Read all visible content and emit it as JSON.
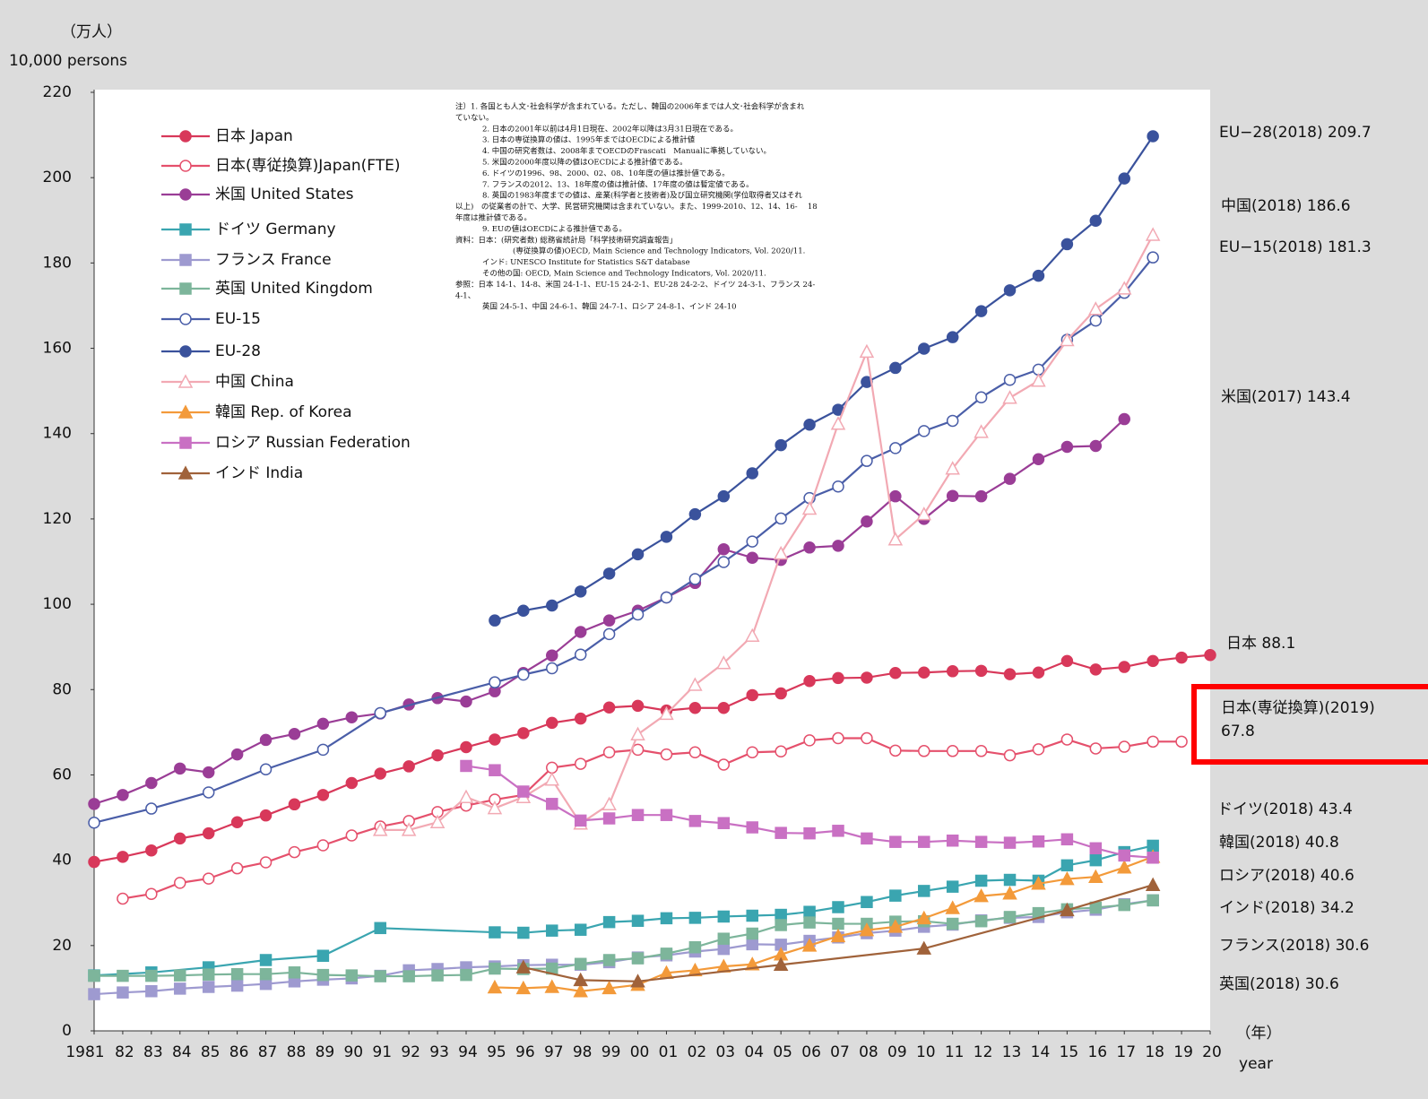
{
  "chart_data": {
    "type": "line",
    "y_unit_label": "（万人）",
    "y_unit_label_en": "10,000 persons",
    "x_unit_label": "（年）",
    "x_unit_label_en": "year",
    "xlim": [
      1981,
      2020
    ],
    "xticks": [
      1981,
      {
        "value": 1982,
        "label": "82"
      },
      {
        "value": 1983,
        "label": "83"
      },
      {
        "value": 1984,
        "label": "84"
      },
      {
        "value": 1985,
        "label": "85"
      },
      {
        "value": 1986,
        "label": "86"
      },
      {
        "value": 1987,
        "label": "87"
      },
      {
        "value": 1988,
        "label": "88"
      },
      {
        "value": 1989,
        "label": "89"
      },
      {
        "value": 1990,
        "label": "90"
      },
      {
        "value": 1991,
        "label": "91"
      },
      {
        "value": 1992,
        "label": "92"
      },
      {
        "value": 1993,
        "label": "93"
      },
      {
        "value": 1994,
        "label": "94"
      },
      {
        "value": 1995,
        "label": "95"
      },
      {
        "value": 1996,
        "label": "96"
      },
      {
        "value": 1997,
        "label": "97"
      },
      {
        "value": 1998,
        "label": "98"
      },
      {
        "value": 1999,
        "label": "99"
      },
      {
        "value": 2000,
        "label": "00"
      },
      {
        "value": 2001,
        "label": "01"
      },
      {
        "value": 2002,
        "label": "02"
      },
      {
        "value": 2003,
        "label": "03"
      },
      {
        "value": 2004,
        "label": "04"
      },
      {
        "value": 2005,
        "label": "05"
      },
      {
        "value": 2006,
        "label": "06"
      },
      {
        "value": 2007,
        "label": "07"
      },
      {
        "value": 2008,
        "label": "08"
      },
      {
        "value": 2009,
        "label": "09"
      },
      {
        "value": 2010,
        "label": "10"
      },
      {
        "value": 2011,
        "label": "11"
      },
      {
        "value": 2012,
        "label": "12"
      },
      {
        "value": 2013,
        "label": "13"
      },
      {
        "value": 2014,
        "label": "14"
      },
      {
        "value": 2015,
        "label": "15"
      },
      {
        "value": 2016,
        "label": "16"
      },
      {
        "value": 2017,
        "label": "17"
      },
      {
        "value": 2018,
        "label": "18"
      },
      {
        "value": 2019,
        "label": "19"
      },
      {
        "value": 2020,
        "label": "20"
      }
    ],
    "ylim": [
      0,
      220
    ],
    "yticks": [
      0,
      20,
      40,
      60,
      80,
      100,
      120,
      140,
      160,
      180,
      200,
      220
    ],
    "grid": false,
    "series": [
      {
        "name": "日本 Japan",
        "color": "#d8385a",
        "marker": "circle",
        "filled": true,
        "x": [
          1981,
          1982,
          1983,
          1984,
          1985,
          1986,
          1987,
          1988,
          1989,
          1990,
          1991,
          1992,
          1993,
          1994,
          1995,
          1996,
          1997,
          1998,
          1999,
          2000,
          2001,
          2002,
          2003,
          2004,
          2005,
          2006,
          2007,
          2008,
          2009,
          2010,
          2011,
          2012,
          2013,
          2014,
          2015,
          2016,
          2017,
          2018,
          2019,
          2020
        ],
        "values": [
          39.6,
          40.8,
          42.3,
          45.1,
          46.3,
          48.9,
          50.5,
          53.1,
          55.3,
          58.1,
          60.3,
          62.0,
          64.6,
          66.5,
          68.3,
          69.8,
          72.2,
          73.2,
          75.8,
          76.2,
          75.1,
          75.7,
          75.7,
          78.7,
          79.1,
          82.0,
          82.7,
          82.8,
          83.9,
          84.0,
          84.3,
          84.4,
          83.6,
          84.0,
          86.7,
          84.7,
          85.3,
          86.7,
          87.5,
          88.1
        ]
      },
      {
        "name": "日本(専従換算)Japan(FTE)",
        "color": "#e5506c",
        "marker": "circle",
        "filled": false,
        "x": [
          1982,
          1983,
          1984,
          1985,
          1986,
          1987,
          1988,
          1989,
          1990,
          1991,
          1992,
          1993,
          1994,
          1995,
          1996,
          1997,
          1998,
          1999,
          2000,
          2001,
          2002,
          2003,
          2004,
          2005,
          2006,
          2007,
          2008,
          2009,
          2010,
          2011,
          2012,
          2013,
          2014,
          2015,
          2016,
          2017,
          2018,
          2019
        ],
        "values": [
          31.0,
          32.1,
          34.7,
          35.7,
          38.1,
          39.5,
          41.9,
          43.5,
          45.8,
          47.9,
          49.2,
          51.3,
          52.8,
          54.2,
          55.3,
          61.7,
          62.6,
          65.3,
          65.9,
          64.8,
          65.3,
          62.4,
          65.3,
          65.5,
          68.1,
          68.6,
          68.6,
          65.7,
          65.6,
          65.6,
          65.6,
          64.6,
          66.0,
          68.3,
          66.2,
          66.6,
          67.8,
          67.8
        ]
      },
      {
        "name": "米国 United States",
        "color": "#9a3d96",
        "marker": "circle",
        "filled": true,
        "x": [
          1981,
          1982,
          1983,
          1984,
          1985,
          1986,
          1987,
          1988,
          1989,
          1990,
          1991,
          1992,
          1993,
          1994,
          1995,
          1996,
          1997,
          1998,
          1999,
          2000,
          2001,
          2002,
          2003,
          2004,
          2005,
          2006,
          2007,
          2008,
          2009,
          2010,
          2011,
          2012,
          2013,
          2014,
          2015,
          2016,
          2017
        ],
        "values": [
          53.2,
          55.3,
          58.1,
          61.5,
          60.6,
          64.8,
          68.2,
          69.6,
          72.0,
          73.5,
          74.4,
          76.5,
          78.0,
          77.2,
          79.6,
          83.9,
          88.0,
          93.5,
          96.2,
          98.5,
          101.6,
          105.0,
          112.9,
          110.9,
          110.4,
          113.3,
          113.7,
          119.4,
          125.3,
          120.0,
          125.4,
          125.3,
          129.4,
          134.0,
          136.9,
          137.1,
          143.4
        ]
      },
      {
        "name": "ドイツ Germany",
        "color": "#3aa5b0",
        "marker": "square",
        "filled": true,
        "x": [
          1981,
          1983,
          1985,
          1987,
          1989,
          1991,
          1995,
          1996,
          1997,
          1998,
          1999,
          2000,
          2001,
          2002,
          2003,
          2004,
          2005,
          2006,
          2007,
          2008,
          2009,
          2010,
          2011,
          2012,
          2013,
          2014,
          2015,
          2016,
          2017,
          2018
        ],
        "values": [
          13.0,
          13.7,
          14.9,
          16.6,
          17.6,
          24.1,
          23.1,
          23.0,
          23.5,
          23.7,
          25.5,
          25.8,
          26.4,
          26.5,
          26.8,
          27.0,
          27.2,
          27.9,
          29.0,
          30.2,
          31.7,
          32.8,
          33.8,
          35.2,
          35.4,
          35.2,
          38.8,
          40.0,
          41.9,
          43.4
        ]
      },
      {
        "name": "フランス France",
        "color": "#9e9ad0",
        "marker": "square",
        "filled": true,
        "x": [
          1981,
          1982,
          1983,
          1984,
          1985,
          1986,
          1987,
          1988,
          1989,
          1990,
          1991,
          1992,
          1993,
          1994,
          1995,
          1996,
          1997,
          1998,
          1999,
          2000,
          2001,
          2002,
          2003,
          2004,
          2005,
          2006,
          2007,
          2008,
          2009,
          2010,
          2011,
          2012,
          2013,
          2014,
          2015,
          2016,
          2017,
          2018
        ],
        "values": [
          8.6,
          9.0,
          9.3,
          9.9,
          10.3,
          10.6,
          11.0,
          11.6,
          12.0,
          12.3,
          12.9,
          14.2,
          14.5,
          14.9,
          15.1,
          15.4,
          15.5,
          15.5,
          16.1,
          17.2,
          17.7,
          18.6,
          19.2,
          20.3,
          20.2,
          21.1,
          21.9,
          22.9,
          23.5,
          24.4,
          24.9,
          25.9,
          26.5,
          26.7,
          27.8,
          28.4,
          29.7,
          30.6
        ]
      },
      {
        "name": "英国 United Kingdom",
        "color": "#7db59b",
        "marker": "square",
        "filled": true,
        "x": [
          1981,
          1982,
          1983,
          1984,
          1985,
          1986,
          1987,
          1988,
          1989,
          1990,
          1991,
          1992,
          1993,
          1994,
          1995,
          1996,
          1997,
          1998,
          1999,
          2000,
          2001,
          2002,
          2003,
          2004,
          2005,
          2006,
          2007,
          2008,
          2009,
          2010,
          2011,
          2012,
          2013,
          2014,
          2015,
          2016,
          2017,
          2018
        ],
        "values": [
          12.9,
          12.9,
          12.9,
          13.0,
          13.2,
          13.3,
          13.3,
          13.7,
          13.1,
          13.0,
          12.8,
          12.8,
          13.0,
          13.1,
          14.6,
          14.5,
          14.6,
          15.7,
          16.6,
          17.0,
          18.1,
          19.6,
          21.6,
          22.8,
          24.8,
          25.4,
          25.1,
          25.1,
          25.6,
          25.7,
          25.1,
          25.7,
          26.7,
          27.6,
          28.5,
          28.9,
          29.5,
          30.6
        ]
      },
      {
        "name": "EU-15",
        "color": "#4a5ea8",
        "marker": "circle",
        "filled": false,
        "x": [
          1981,
          1983,
          1985,
          1987,
          1989,
          1991,
          1995,
          1996,
          1997,
          1998,
          1999,
          2000,
          2001,
          2002,
          2003,
          2004,
          2005,
          2006,
          2007,
          2008,
          2009,
          2010,
          2011,
          2012,
          2013,
          2014,
          2015,
          2016,
          2017,
          2018
        ],
        "values": [
          48.8,
          52.1,
          55.9,
          61.3,
          65.9,
          74.5,
          81.7,
          83.5,
          85.0,
          88.2,
          93.0,
          97.6,
          101.6,
          105.9,
          109.9,
          114.7,
          120.1,
          124.9,
          127.6,
          133.6,
          136.6,
          140.6,
          143.0,
          148.5,
          152.6,
          155.0,
          162.0,
          166.5,
          173.0,
          181.3
        ]
      },
      {
        "name": "EU-28",
        "color": "#3a529c",
        "marker": "circle",
        "filled": true,
        "x": [
          1995,
          1996,
          1997,
          1998,
          1999,
          2000,
          2001,
          2002,
          2003,
          2004,
          2005,
          2006,
          2007,
          2008,
          2009,
          2010,
          2011,
          2012,
          2013,
          2014,
          2015,
          2016,
          2017,
          2018
        ],
        "values": [
          96.2,
          98.5,
          99.7,
          103.0,
          107.2,
          111.7,
          115.8,
          121.1,
          125.3,
          130.7,
          137.3,
          142.1,
          145.6,
          152.1,
          155.4,
          159.9,
          162.6,
          168.7,
          173.6,
          177.0,
          184.4,
          189.9,
          199.8,
          209.7
        ]
      },
      {
        "name": "中国 China",
        "color": "#f2a9b3",
        "marker": "triangle",
        "filled": false,
        "x": [
          1991,
          1992,
          1993,
          1994,
          1995,
          1996,
          1997,
          1998,
          1999,
          2000,
          2001,
          2002,
          2003,
          2004,
          2005,
          2006,
          2007,
          2008,
          2009,
          2010,
          2011,
          2012,
          2013,
          2014,
          2015,
          2016,
          2017,
          2018
        ],
        "values": [
          47.1,
          47.1,
          48.9,
          54.8,
          52.2,
          54.8,
          58.9,
          48.6,
          53.1,
          69.5,
          74.3,
          81.1,
          86.2,
          92.6,
          111.9,
          122.4,
          142.3,
          159.2,
          115.2,
          121.1,
          131.8,
          140.4,
          148.4,
          152.4,
          161.9,
          169.2,
          174.0,
          186.6
        ]
      },
      {
        "name": "韓国 Rep. of Korea",
        "color": "#f39a3a",
        "marker": "triangle",
        "filled": true,
        "x": [
          1995,
          1996,
          1997,
          1998,
          1999,
          2000,
          2001,
          2002,
          2003,
          2004,
          2005,
          2006,
          2007,
          2008,
          2009,
          2010,
          2011,
          2012,
          2013,
          2014,
          2015,
          2016,
          2017,
          2018
        ],
        "values": [
          10.2,
          10.0,
          10.3,
          9.3,
          10.0,
          10.8,
          13.6,
          14.2,
          15.1,
          15.6,
          17.9,
          20.0,
          22.2,
          23.6,
          24.4,
          26.4,
          28.8,
          31.6,
          32.2,
          34.5,
          35.6,
          36.1,
          38.3,
          40.8
        ]
      },
      {
        "name": "ロシア Russian Federation",
        "color": "#c970c3",
        "marker": "square",
        "filled": true,
        "x": [
          1994,
          1995,
          1996,
          1997,
          1998,
          1999,
          2000,
          2001,
          2002,
          2003,
          2004,
          2005,
          2006,
          2007,
          2008,
          2009,
          2010,
          2011,
          2012,
          2013,
          2014,
          2015,
          2016,
          2017,
          2018
        ],
        "values": [
          62.1,
          61.1,
          56.1,
          53.2,
          49.3,
          49.8,
          50.6,
          50.6,
          49.2,
          48.7,
          47.7,
          46.4,
          46.3,
          46.9,
          45.1,
          44.3,
          44.3,
          44.6,
          44.3,
          44.1,
          44.4,
          44.9,
          42.8,
          41.1,
          40.6
        ]
      },
      {
        "name": "インド India",
        "color": "#a0623a",
        "marker": "triangle",
        "filled": true,
        "x": [
          1996,
          1998,
          2000,
          2005,
          2010,
          2015,
          2018
        ],
        "values": [
          14.9,
          11.9,
          11.6,
          15.5,
          19.3,
          28.3,
          34.2
        ]
      }
    ],
    "annotations": [
      "EU−28(2018) 209.7",
      "中国(2018) 186.6",
      "EU−15(2018) 181.3",
      "米国(2017) 143.4",
      "日本 88.1",
      "日本(専従換算)(2019)",
      "67.8",
      "ドイツ(2018) 43.4",
      "韓国(2018) 40.8",
      "ロシア(2018) 40.6",
      "インド(2018) 34.2",
      "フランス(2018) 30.6",
      "英国(2018) 30.6"
    ],
    "notes": [
      "注）1. 各国とも人文･社会科学が含まれている。ただし、韓国の2006年までは人文･社会科学が含まれ",
      "ていない。",
      "2. 日本の2001年以前は4月1日現在、2002年以降は3月31日現在である。",
      "3. 日本の専従換算の値は、1995年まではOECDによる推計値",
      "4. 中国の研究者数は、2008年までOECDのFrascati　Manualに準拠していない。",
      "5. 米国の2000年度以降の値はOECDによる推計値である。",
      "6. ドイツの1996、98、2000、02、08、10年度の値は推計値である。",
      "7. フランスの2012、13、18年度の値は推計値、17年度の値は暫定値である。",
      "8. 英国の1983年度までの値は、産業(科学者と技術者)及び国立研究機関(学位取得者又はそれ",
      "以上)　の従業者の計で、大学、民営研究機関は含まれていない。また、1999-2010、12、14、16-　 18",
      "年度は推計値である。",
      "9. EUの値はOECDによる推計値である。",
      "資料：日本：(研究者数) 総務省統計局「科学技術研究調査報告」",
      "(専従換算の値)OECD, Main Science and Technology Indicators, Vol. 2020/11.",
      "インド: UNESCO Institute for Statistics S&T database",
      "その他の国: OECD, Main Science and Technology Indicators, Vol. 2020/11.",
      "参照：日本 14-1、14-8、米国 24-1-1、EU-15 24-2-1、EU-28 24-2-2、ドイツ 24-3-1、フランス 24-",
      "4-1、",
      "英国 24-5-1、中国 24-6-1、韓国 24-7-1、ロシア 24-8-1、インド 24-10"
    ]
  }
}
